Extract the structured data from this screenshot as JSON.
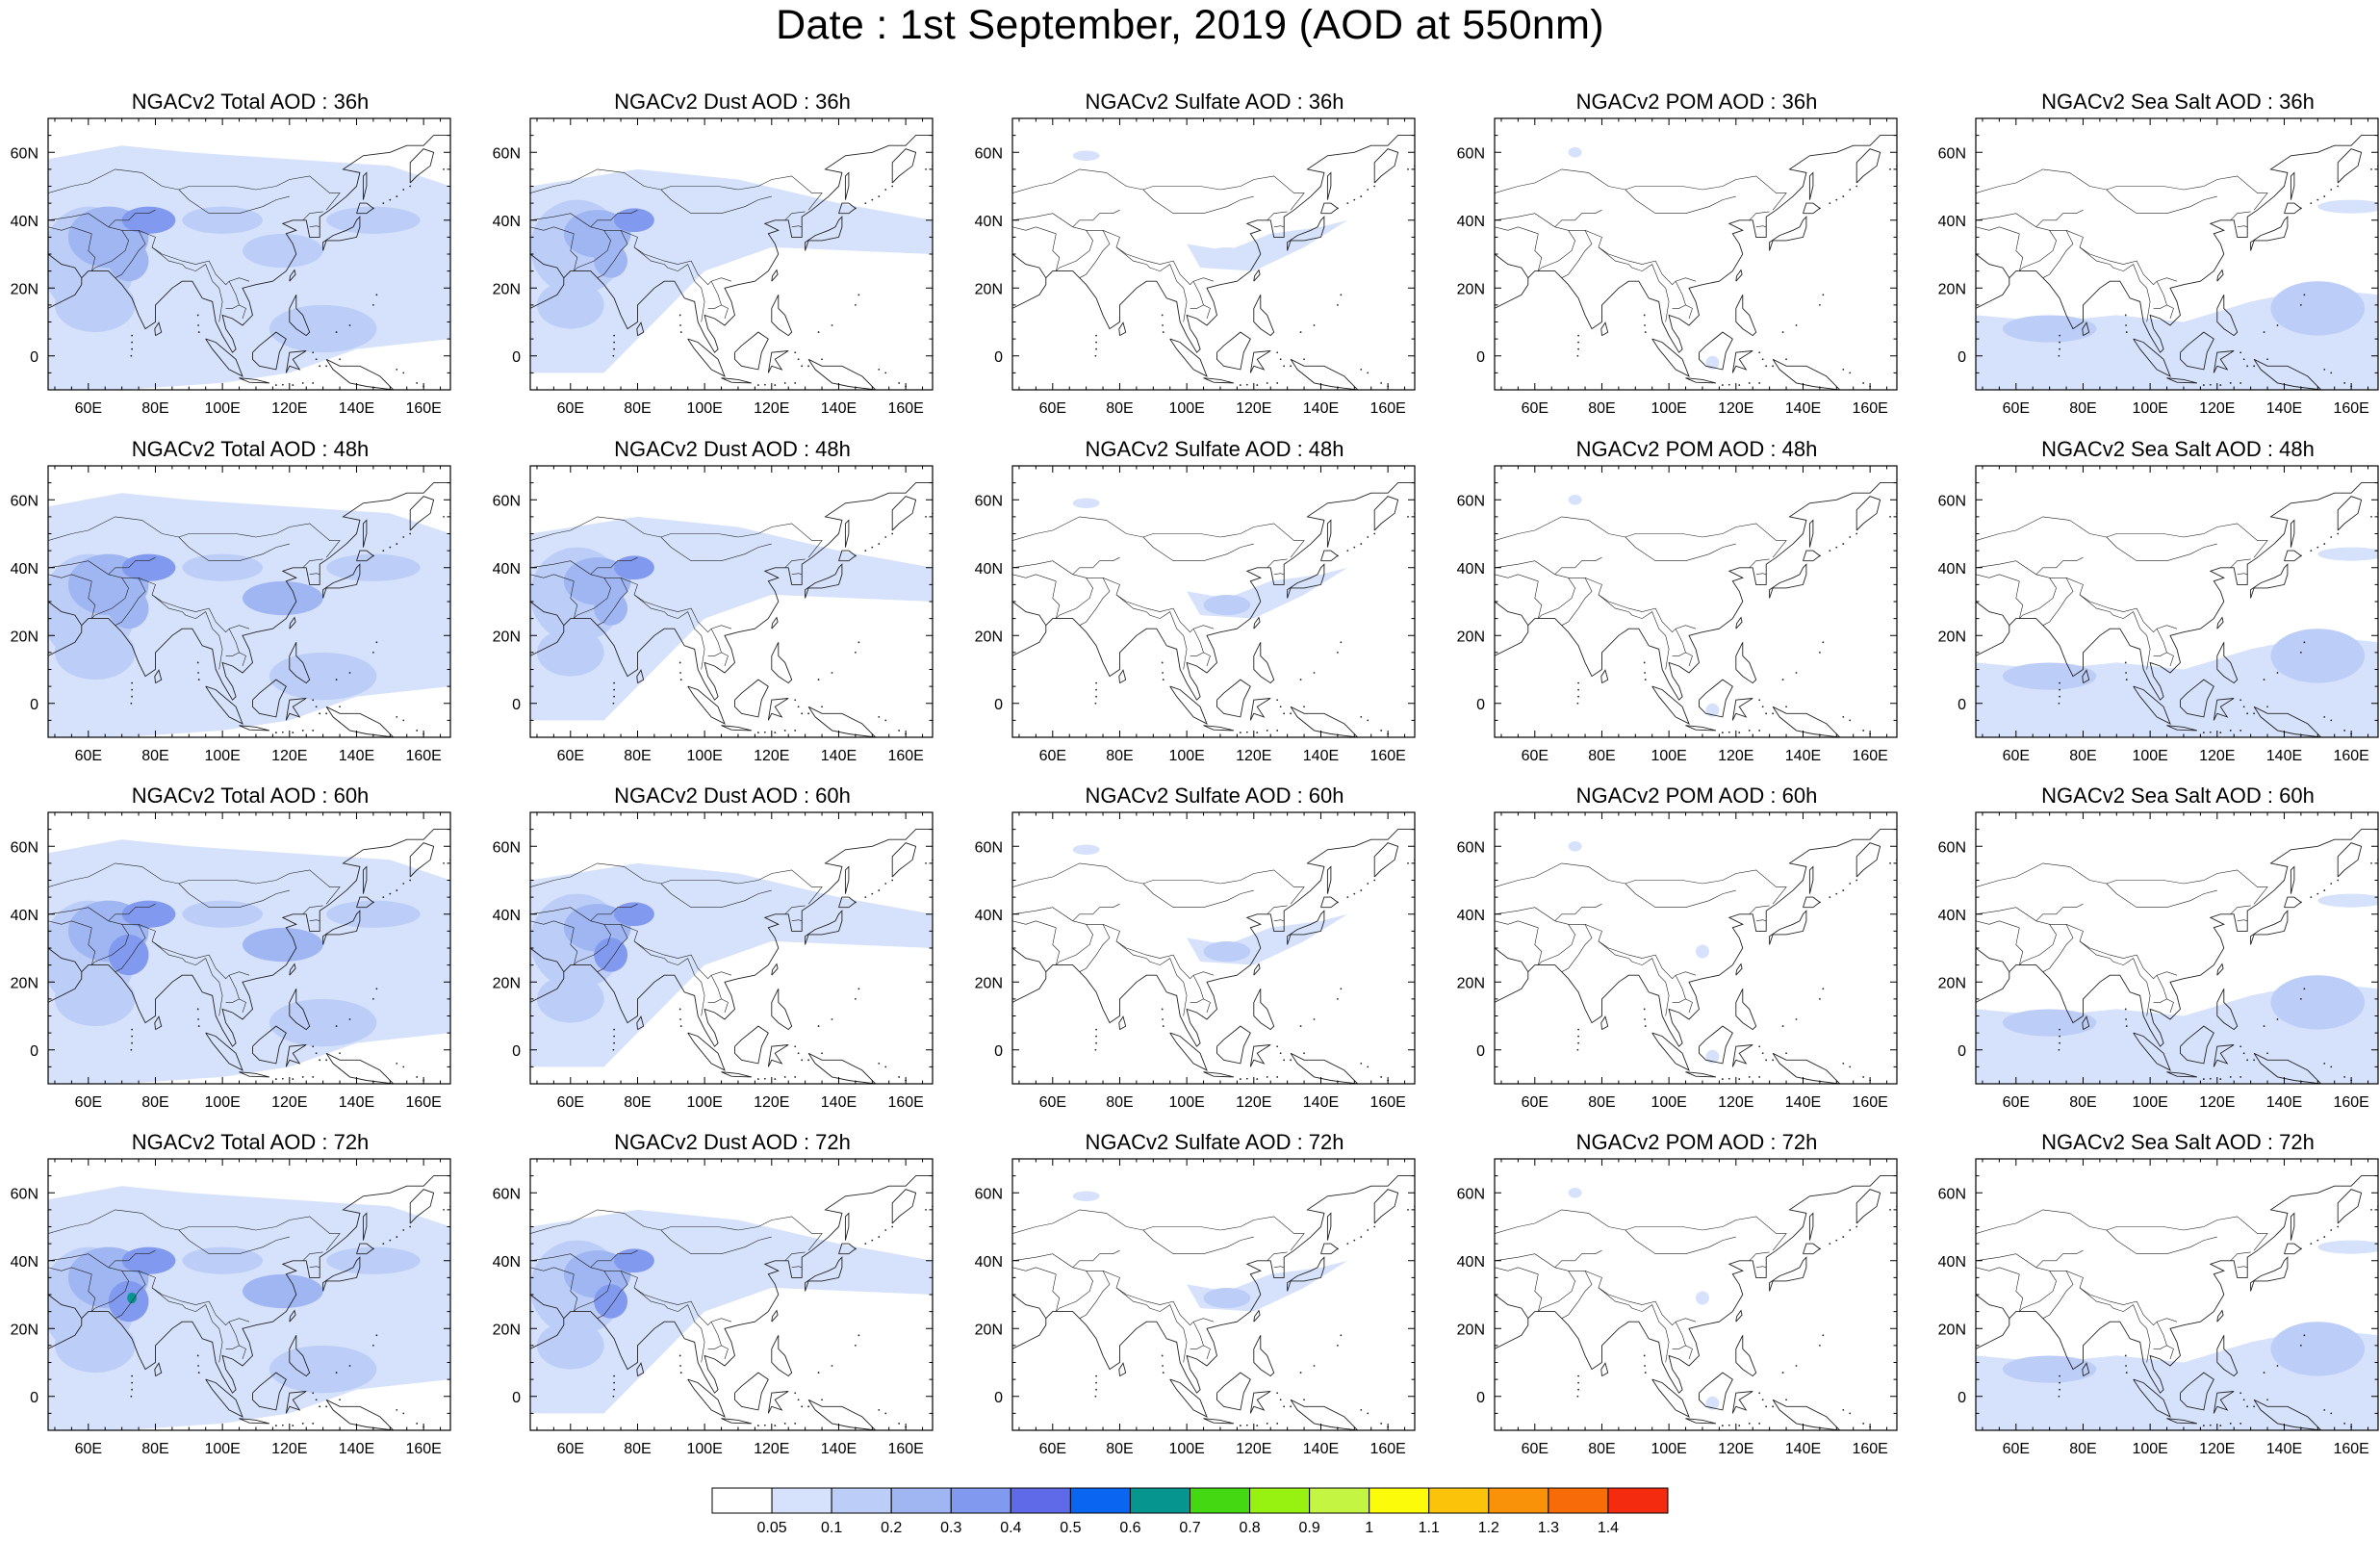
{
  "title": "Date : 1st September, 2019 (AOD at 550nm)",
  "panels": [
    {
      "title": "NGACv2 Total AOD : 36h"
    },
    {
      "title": "NGACv2 Dust AOD : 36h"
    },
    {
      "title": "NGACv2 Sulfate AOD : 36h"
    },
    {
      "title": "NGACv2 POM AOD : 36h"
    },
    {
      "title": "NGACv2 Sea Salt AOD : 36h"
    },
    {
      "title": "NGACv2 Total AOD : 48h"
    },
    {
      "title": "NGACv2 Dust AOD : 48h"
    },
    {
      "title": "NGACv2 Sulfate AOD : 48h"
    },
    {
      "title": "NGACv2 POM AOD : 48h"
    },
    {
      "title": "NGACv2 Sea Salt AOD : 48h"
    },
    {
      "title": "NGACv2 Total AOD : 60h"
    },
    {
      "title": "NGACv2 Dust AOD : 60h"
    },
    {
      "title": "NGACv2 Sulfate AOD : 60h"
    },
    {
      "title": "NGACv2 POM AOD : 60h"
    },
    {
      "title": "NGACv2 Sea Salt AOD : 60h"
    },
    {
      "title": "NGACv2 Total AOD : 72h"
    },
    {
      "title": "NGACv2 Dust AOD : 72h"
    },
    {
      "title": "NGACv2 Sulfate AOD : 72h"
    },
    {
      "title": "NGACv2 POM AOD : 72h"
    },
    {
      "title": "NGACv2 Sea Salt  AOD : 72h"
    }
  ],
  "axes": {
    "lon_labels": [
      "60E",
      "80E",
      "100E",
      "120E",
      "140E",
      "160E"
    ],
    "lon_values": [
      60,
      80,
      100,
      120,
      140,
      160
    ],
    "lat_labels": [
      "60N",
      "40N",
      "20N",
      "0"
    ],
    "lat_values": [
      60,
      40,
      20,
      0
    ],
    "lon_range": [
      48,
      168
    ],
    "lat_range": [
      -10,
      70
    ]
  },
  "colorbar": {
    "labels": [
      "0.05",
      "0.1",
      "0.2",
      "0.3",
      "0.4",
      "0.5",
      "0.6",
      "0.7",
      "0.8",
      "0.9",
      "1",
      "1.1",
      "1.2",
      "1.3",
      "1.4"
    ],
    "colors": [
      "#ffffff",
      "#d6e2fb",
      "#bccdf7",
      "#9fb6f3",
      "#8199ee",
      "#5f6ae9",
      "#0a66f0",
      "#06968f",
      "#44d813",
      "#97f212",
      "#c3f542",
      "#fcfc0a",
      "#fbc30a",
      "#f99209",
      "#f76b09",
      "#f52b10"
    ]
  },
  "colors": {
    "light_blue": "#d6e2fb",
    "mid_blue": "#bccdf7",
    "blue": "#9fb6f3",
    "deep_blue": "#8199ee",
    "green": "#06968f"
  }
}
